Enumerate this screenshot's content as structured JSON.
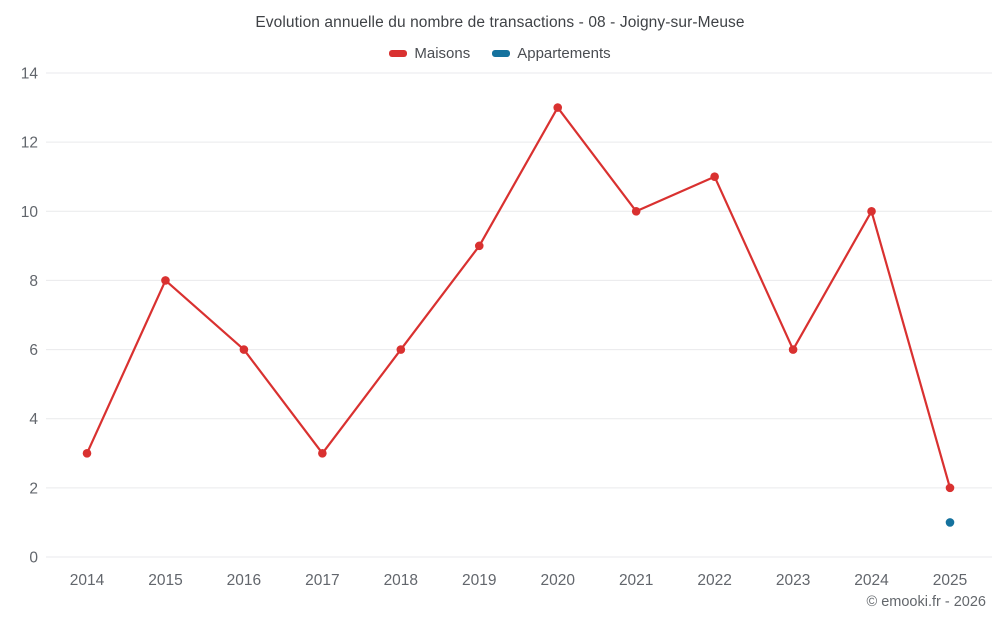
{
  "title": "Evolution annuelle du nombre de transactions - 08 - Joigny-sur-Meuse",
  "legend": [
    {
      "label": "Maisons",
      "color": "#d93130"
    },
    {
      "label": "Appartements",
      "color": "#15729e"
    }
  ],
  "footer": "© emooki.fr - 2026",
  "colors": {
    "grid": "#e9eaec",
    "axis_text": "#62666c",
    "maisons": "#d93130",
    "appartements": "#15729e"
  },
  "chart_data": {
    "type": "line",
    "title": "Evolution annuelle du nombre de transactions - 08 - Joigny-sur-Meuse",
    "categories": [
      "2014",
      "2015",
      "2016",
      "2017",
      "2018",
      "2019",
      "2020",
      "2021",
      "2022",
      "2023",
      "2024",
      "2025"
    ],
    "series": [
      {
        "name": "Maisons",
        "color": "#d93130",
        "values": [
          3,
          8,
          6,
          3,
          6,
          9,
          13,
          10,
          11,
          6,
          10,
          2
        ]
      },
      {
        "name": "Appartements",
        "color": "#15729e",
        "values": [
          null,
          null,
          null,
          null,
          null,
          null,
          null,
          null,
          null,
          null,
          null,
          1
        ]
      }
    ],
    "xlabel": "",
    "ylabel": "",
    "ylim": [
      0,
      14
    ],
    "yticks": [
      0,
      2,
      4,
      6,
      8,
      10,
      12,
      14
    ],
    "grid": true,
    "legend_position": "top"
  }
}
